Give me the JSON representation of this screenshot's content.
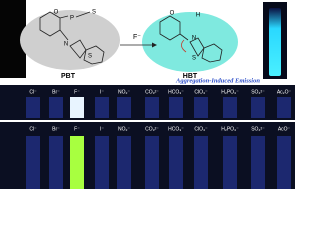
{
  "scheme": {
    "reagent": "F⁻",
    "reactant": {
      "label": "PBT",
      "atoms": [
        "O",
        "P",
        "S",
        "N",
        "S"
      ]
    },
    "product": {
      "label": "HBT",
      "atoms": [
        "O",
        "H",
        "N",
        "S"
      ]
    },
    "caption": "Aggregation-Induced Emission"
  },
  "panels": [
    {
      "anions": [
        "Cl⁻",
        "Br⁻",
        "F⁻",
        "I⁻",
        "NO₂⁻",
        "CO₃²⁻",
        "HCO₃⁻",
        "ClO₄⁻",
        "H₂PO₄⁻",
        "SO₄²⁻",
        "Ac₂O⁻"
      ]
    },
    {
      "anions": [
        "Cl⁻",
        "Br⁻",
        "F⁻",
        "I⁻",
        "NO₂⁻",
        "CO₃²⁻",
        "HCO₃⁻",
        "ClO₄⁻",
        "H₂PO₄⁻",
        "SO₄²⁻",
        "AcO⁻"
      ]
    }
  ]
}
